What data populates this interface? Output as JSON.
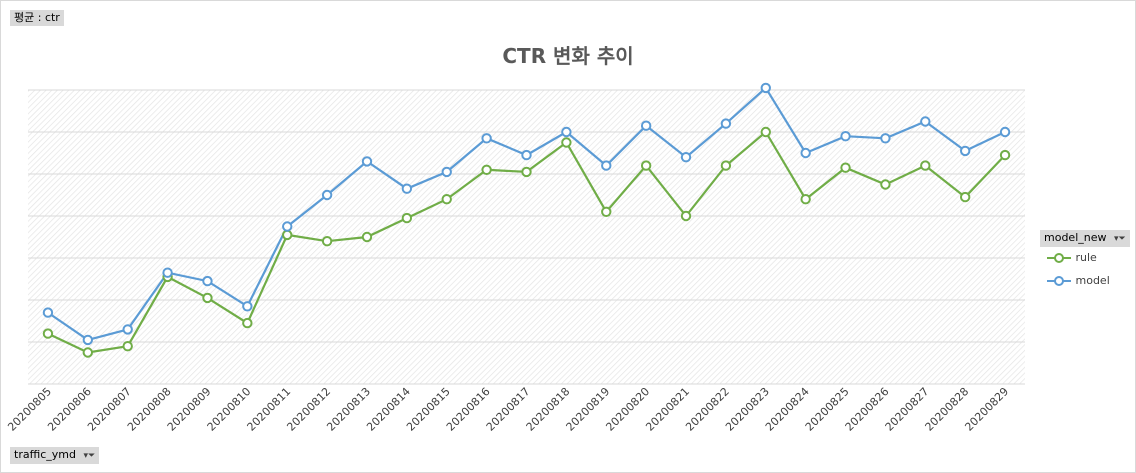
{
  "filters": {
    "average_label": "평균 : ctr",
    "x_field_label": "traffic_ymd",
    "legend_field_label": "model_new"
  },
  "chart_data": {
    "type": "line",
    "title": "CTR 변화 추이",
    "xlabel": "",
    "ylabel": "",
    "grid": true,
    "legend_position": "right",
    "categories": [
      "20200805",
      "20200806",
      "20200807",
      "20200808",
      "20200809",
      "20200810",
      "20200811",
      "20200812",
      "20200813",
      "20200814",
      "20200815",
      "20200816",
      "20200817",
      "20200818",
      "20200819",
      "20200820",
      "20200821",
      "20200822",
      "20200823",
      "20200824",
      "20200825",
      "20200826",
      "20200827",
      "20200828",
      "20200829"
    ],
    "ylim": [
      0,
      7
    ],
    "series": [
      {
        "name": "rule",
        "color": "#70ad47",
        "values": [
          1.2,
          0.75,
          0.9,
          2.55,
          2.05,
          1.45,
          3.55,
          3.4,
          3.5,
          3.95,
          4.4,
          5.1,
          5.05,
          5.75,
          4.1,
          5.2,
          4.0,
          5.2,
          6.0,
          4.4,
          5.15,
          4.75,
          5.2,
          4.45,
          5.45
        ]
      },
      {
        "name": "model",
        "color": "#5b9bd5",
        "values": [
          1.7,
          1.05,
          1.3,
          2.65,
          2.45,
          1.85,
          3.75,
          4.5,
          5.3,
          4.65,
          5.05,
          5.85,
          5.45,
          6.0,
          5.2,
          6.15,
          5.4,
          6.2,
          7.05,
          5.5,
          5.9,
          5.85,
          6.25,
          5.55,
          6.0
        ]
      }
    ]
  }
}
